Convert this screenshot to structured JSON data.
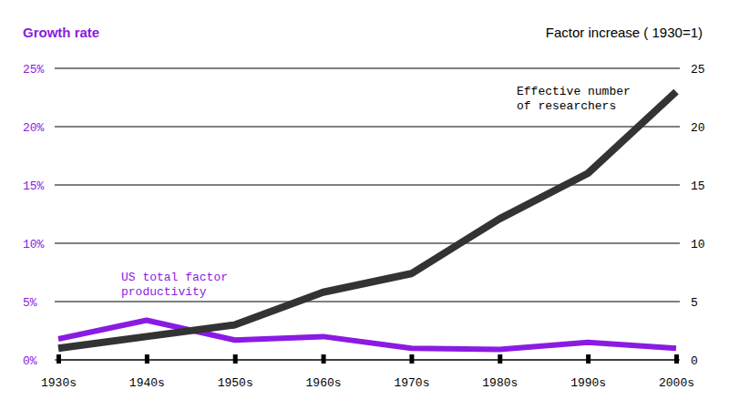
{
  "chart_data": {
    "type": "line",
    "y_label": "Growth rate",
    "y2_label": "Factor increase ( 1930=1)",
    "categories": [
      "1930s",
      "1940s",
      "1950s",
      "1960s",
      "1970s",
      "1980s",
      "1990s",
      "2000s"
    ],
    "series": [
      {
        "name": "US total factor productivity",
        "color": "#8a1be2",
        "values": [
          1.8,
          3.4,
          1.7,
          2.0,
          1.0,
          0.9,
          1.5,
          1.0
        ]
      },
      {
        "name": "Effective number of researchers",
        "color": "#333333",
        "axis": "y2",
        "values": [
          1.0,
          2.0,
          3.0,
          5.8,
          7.4,
          12.1,
          16.0,
          23.0
        ]
      }
    ],
    "ylim": [
      0,
      25
    ],
    "yticks": [
      {
        "value": 0,
        "label": "0%"
      },
      {
        "value": 5,
        "label": "5%"
      },
      {
        "value": 10,
        "label": "10%"
      },
      {
        "value": 15,
        "label": "15%"
      },
      {
        "value": 20,
        "label": "20%"
      },
      {
        "value": 25,
        "label": "25%"
      }
    ],
    "y2lim": [
      0,
      25
    ],
    "y2ticks": [
      0,
      5,
      10,
      15,
      20,
      25
    ],
    "grid": true
  }
}
